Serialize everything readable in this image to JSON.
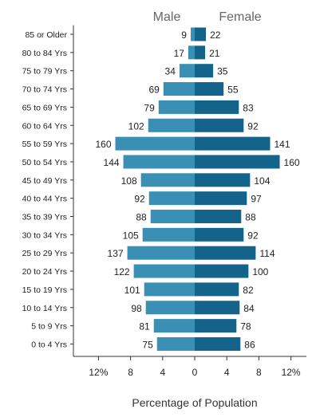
{
  "colors": {
    "male": "#3a8fb4",
    "female": "#14638a",
    "axis": "#333333",
    "text": "#222222",
    "legend_text": "#666666",
    "background": "#ffffff"
  },
  "chart_data": {
    "type": "bar",
    "orientation": "horizontal",
    "layout": "population-pyramid",
    "title": "",
    "xlabel": "Percentage of Population",
    "ylabel": "",
    "grid": false,
    "legend_placement": "top-center",
    "x_ticks": [
      {
        "value": -12,
        "label": "12%"
      },
      {
        "value": -8,
        "label": "8"
      },
      {
        "value": -4,
        "label": "4"
      },
      {
        "value": 0,
        "label": "0"
      },
      {
        "value": 4,
        "label": "4"
      },
      {
        "value": 8,
        "label": "8"
      },
      {
        "value": 12,
        "label": "12%"
      }
    ],
    "xlim": [
      -14.5,
      14.5
    ],
    "categories": [
      "85 or Older",
      "80 to 84 Yrs",
      "75 to 79 Yrs",
      "70 to 74 Yrs",
      "65 to 69 Yrs",
      "60 to 64 Yrs",
      "55 to 59 Yrs",
      "50 to 54 Yrs",
      "45 to 49 Yrs",
      "40 to 44 Yrs",
      "35 to 39 Yrs",
      "30 to 34 Yrs",
      "25 to 29 Yrs",
      "20 to 24 Yrs",
      "15 to 19 Yrs",
      "10 to 14 Yrs",
      "5 to 9 Yrs",
      "0 to 4 Yrs"
    ],
    "series": [
      {
        "name": "Male",
        "side": "left",
        "color": "#3a8fb4",
        "percent": [
          0.5,
          0.8,
          1.9,
          3.9,
          4.5,
          5.8,
          9.9,
          8.9,
          6.7,
          5.7,
          5.5,
          6.5,
          8.4,
          7.6,
          6.3,
          6.1,
          5.1,
          4.7
        ],
        "labels": [
          "9",
          "17",
          "34",
          "69",
          "79",
          "102",
          "160",
          "144",
          "108",
          "92",
          "88",
          "105",
          "137",
          "122",
          "101",
          "98",
          "81",
          "75"
        ]
      },
      {
        "name": "Female",
        "side": "right",
        "color": "#14638a",
        "percent": [
          1.4,
          1.3,
          2.3,
          3.6,
          5.5,
          6.1,
          9.4,
          10.6,
          6.9,
          6.5,
          5.8,
          6.1,
          7.6,
          6.7,
          5.5,
          5.6,
          5.2,
          5.7
        ],
        "labels": [
          "22",
          "21",
          "35",
          "55",
          "83",
          "92",
          "141",
          "160",
          "104",
          "97",
          "88",
          "92",
          "114",
          "100",
          "82",
          "84",
          "78",
          "86"
        ]
      }
    ]
  }
}
